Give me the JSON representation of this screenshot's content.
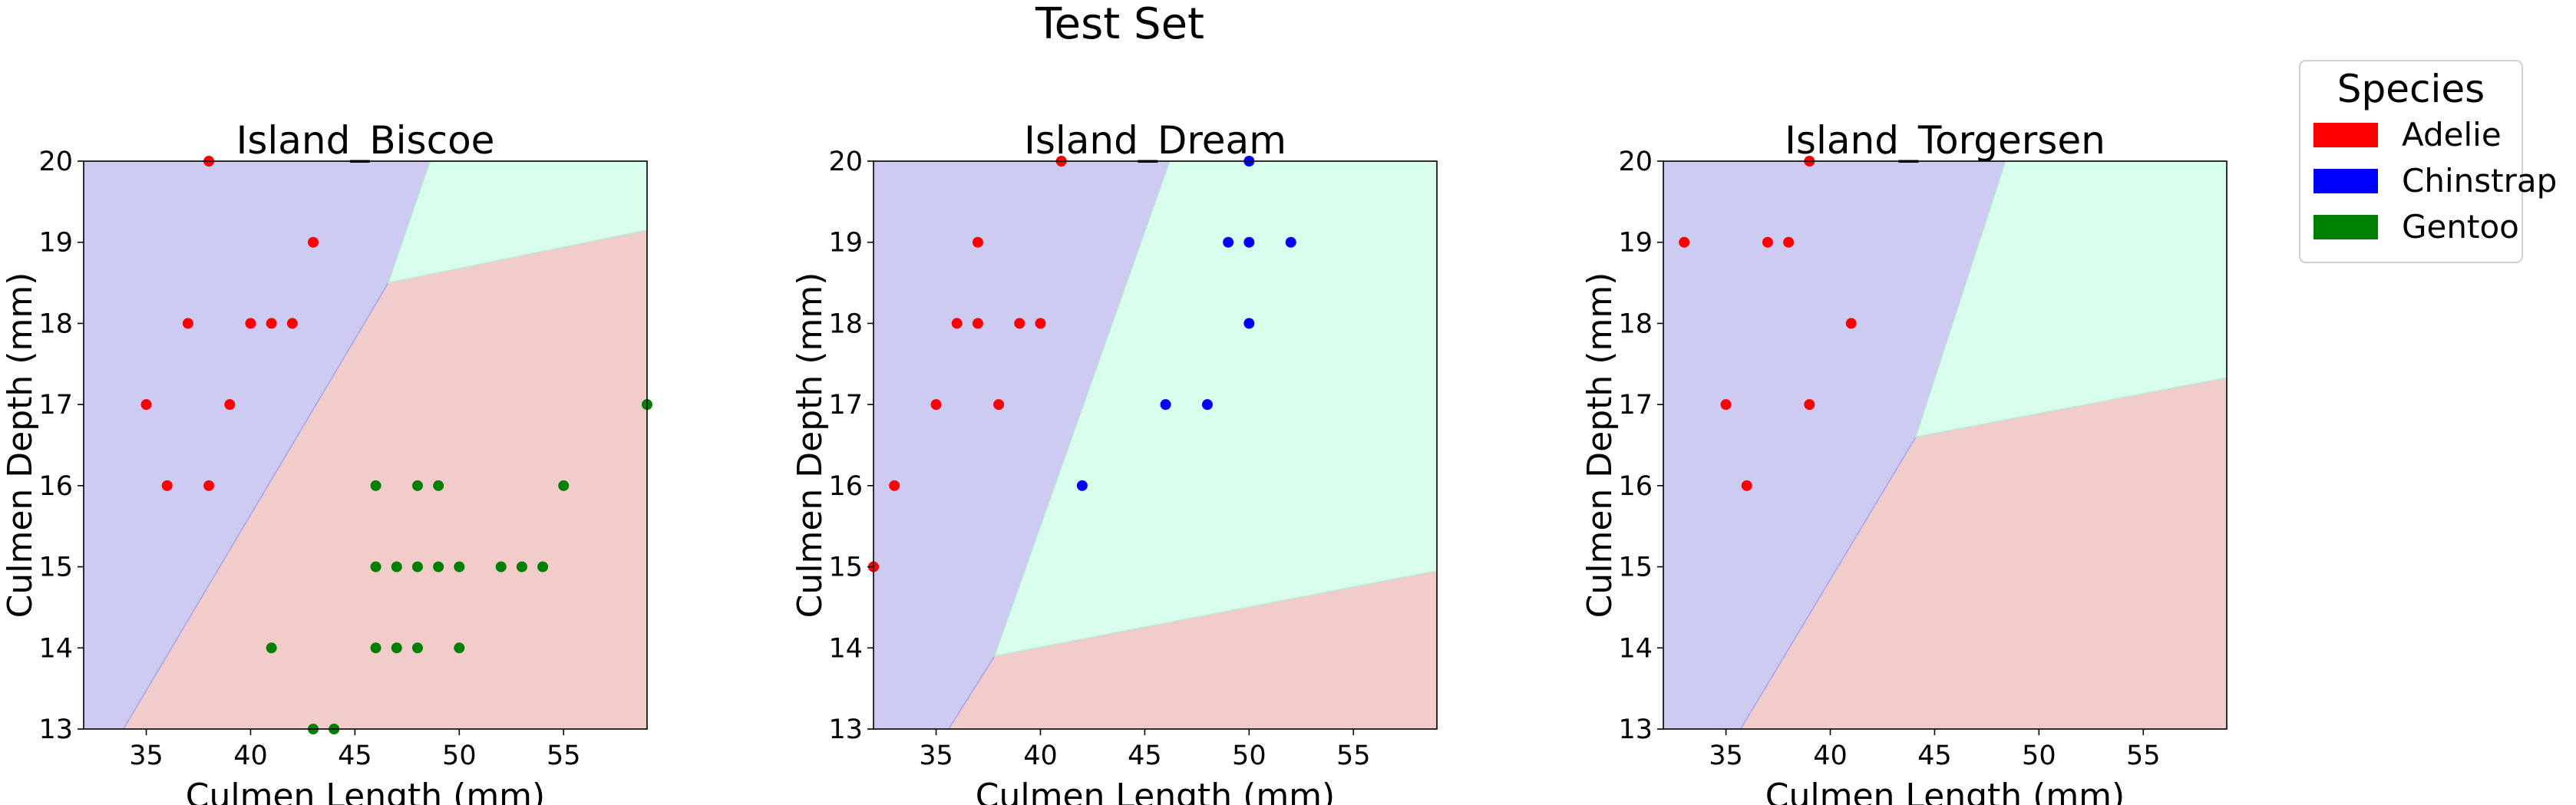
{
  "suptitle": "Test Set",
  "legend": {
    "title": "Species",
    "placement": "right",
    "entries": [
      {
        "label": "Adelie",
        "color": "#ff0000"
      },
      {
        "label": "Chinstrap",
        "color": "#0000ff"
      },
      {
        "label": "Gentoo",
        "color": "#008000"
      }
    ]
  },
  "region_colors": {
    "Adelie": "#f2cbcb",
    "Chinstrap": "#cdcbf2",
    "Gentoo": "#d8fdec"
  },
  "chart_data": [
    {
      "type": "scatter",
      "title": "Island_Biscoe",
      "xlabel": "Culmen Length (mm)",
      "ylabel": "Culmen Depth (mm)",
      "xlim": [
        32,
        59
      ],
      "ylim": [
        13,
        20
      ],
      "xticks": [
        35,
        40,
        45,
        50,
        55
      ],
      "yticks": [
        13,
        14,
        15,
        16,
        17,
        18,
        19,
        20
      ],
      "grid": false,
      "regions": {
        "Chinstrap": [
          [
            32,
            13
          ],
          [
            33.9,
            13
          ],
          [
            46.6,
            18.5
          ],
          [
            48.6,
            20
          ],
          [
            32,
            20
          ]
        ],
        "Gentoo": [
          [
            46.6,
            18.5
          ],
          [
            48.6,
            20
          ],
          [
            59,
            20
          ],
          [
            59,
            19.15
          ]
        ],
        "Adelie": [
          [
            33.9,
            13
          ],
          [
            59,
            13
          ],
          [
            59,
            19.15
          ],
          [
            46.6,
            18.5
          ]
        ]
      },
      "series": [
        {
          "name": "Adelie",
          "color": "#ff0000",
          "points": [
            [
              38,
              20
            ],
            [
              43,
              19
            ],
            [
              37,
              18
            ],
            [
              40,
              18
            ],
            [
              41,
              18
            ],
            [
              42,
              18
            ],
            [
              35,
              17
            ],
            [
              39,
              17
            ],
            [
              36,
              16
            ],
            [
              38,
              16
            ]
          ]
        },
        {
          "name": "Gentoo",
          "color": "#008000",
          "points": [
            [
              59,
              17
            ],
            [
              46,
              16
            ],
            [
              48,
              16
            ],
            [
              49,
              16
            ],
            [
              55,
              16
            ],
            [
              46,
              15
            ],
            [
              47,
              15
            ],
            [
              48,
              15
            ],
            [
              49,
              15
            ],
            [
              50,
              15
            ],
            [
              52,
              15
            ],
            [
              53,
              15
            ],
            [
              54,
              15
            ],
            [
              41,
              14
            ],
            [
              46,
              14
            ],
            [
              47,
              14
            ],
            [
              48,
              14
            ],
            [
              50,
              14
            ],
            [
              43,
              13
            ],
            [
              44,
              13
            ]
          ]
        }
      ]
    },
    {
      "type": "scatter",
      "title": "Island_Dream",
      "xlabel": "Culmen Length (mm)",
      "ylabel": "Culmen Depth (mm)",
      "xlim": [
        32,
        59
      ],
      "ylim": [
        13,
        20
      ],
      "xticks": [
        35,
        40,
        45,
        50,
        55
      ],
      "yticks": [
        13,
        14,
        15,
        16,
        17,
        18,
        19,
        20
      ],
      "grid": false,
      "regions": {
        "Chinstrap": [
          [
            32,
            13
          ],
          [
            35.6,
            13
          ],
          [
            37.8,
            13.9
          ],
          [
            46.2,
            20
          ],
          [
            32,
            20
          ]
        ],
        "Gentoo": [
          [
            37.8,
            13.9
          ],
          [
            46.2,
            20
          ],
          [
            59,
            20
          ],
          [
            59,
            14.95
          ]
        ],
        "Adelie": [
          [
            35.6,
            13
          ],
          [
            59,
            13
          ],
          [
            59,
            14.95
          ],
          [
            37.8,
            13.9
          ]
        ]
      },
      "series": [
        {
          "name": "Adelie",
          "color": "#ff0000",
          "points": [
            [
              41,
              20
            ],
            [
              37,
              19
            ],
            [
              36,
              18
            ],
            [
              37,
              18
            ],
            [
              39,
              18
            ],
            [
              40,
              18
            ],
            [
              35,
              17
            ],
            [
              38,
              17
            ],
            [
              33,
              16
            ],
            [
              32,
              15
            ]
          ]
        },
        {
          "name": "Chinstrap",
          "color": "#0000ff",
          "points": [
            [
              50,
              20
            ],
            [
              49,
              19
            ],
            [
              50,
              19
            ],
            [
              52,
              19
            ],
            [
              50,
              18
            ],
            [
              46,
              17
            ],
            [
              48,
              17
            ],
            [
              42,
              16
            ]
          ]
        }
      ]
    },
    {
      "type": "scatter",
      "title": "Island_Torgersen",
      "xlabel": "Culmen Length (mm)",
      "ylabel": "Culmen Depth (mm)",
      "xlim": [
        32,
        59
      ],
      "ylim": [
        13,
        20
      ],
      "xticks": [
        35,
        40,
        45,
        50,
        55
      ],
      "yticks": [
        13,
        14,
        15,
        16,
        17,
        18,
        19,
        20
      ],
      "grid": false,
      "regions": {
        "Chinstrap": [
          [
            32,
            13
          ],
          [
            35.7,
            13
          ],
          [
            44.1,
            16.6
          ],
          [
            48.4,
            20
          ],
          [
            32,
            20
          ]
        ],
        "Gentoo": [
          [
            44.1,
            16.6
          ],
          [
            48.4,
            20
          ],
          [
            59,
            20
          ],
          [
            59,
            17.33
          ]
        ],
        "Adelie": [
          [
            35.7,
            13
          ],
          [
            59,
            13
          ],
          [
            59,
            17.33
          ],
          [
            44.1,
            16.6
          ]
        ]
      },
      "series": [
        {
          "name": "Adelie",
          "color": "#ff0000",
          "points": [
            [
              39,
              20
            ],
            [
              33,
              19
            ],
            [
              37,
              19
            ],
            [
              38,
              19
            ],
            [
              41,
              18
            ],
            [
              35,
              17
            ],
            [
              39,
              17
            ],
            [
              36,
              16
            ]
          ]
        }
      ]
    }
  ]
}
